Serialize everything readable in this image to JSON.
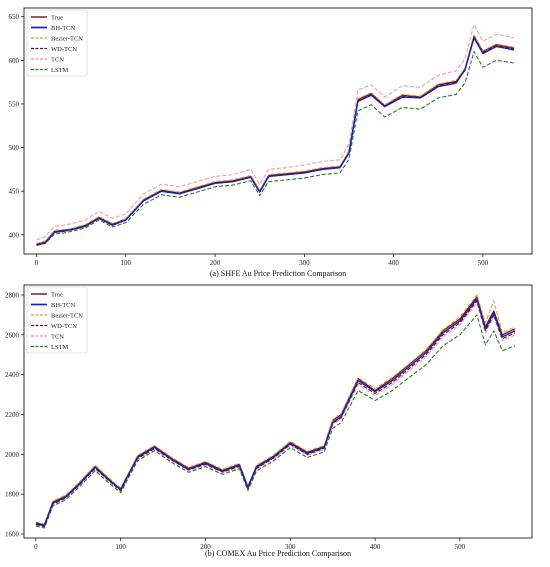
{
  "chart_data": [
    {
      "type": "line",
      "caption": "(a) SHFE Au Price Prediction Comparison",
      "xlim": [
        -14,
        555
      ],
      "ylim": [
        378,
        660
      ],
      "x_ticks": [
        0,
        100,
        200,
        300,
        400,
        500
      ],
      "y_ticks": [
        400,
        450,
        500,
        550,
        600,
        650
      ],
      "legend_position": "upper-left",
      "grid": false,
      "x": [
        0,
        10,
        20,
        30,
        40,
        55,
        70,
        85,
        100,
        120,
        140,
        160,
        180,
        200,
        220,
        240,
        250,
        260,
        280,
        300,
        320,
        340,
        350,
        360,
        375,
        390,
        410,
        430,
        450,
        470,
        480,
        490,
        500,
        515,
        535
      ],
      "series": [
        {
          "name": "True",
          "color": "#7a1020",
          "dash": "solid",
          "width": 1.2,
          "values": [
            389,
            392,
            404,
            405,
            407,
            411,
            420,
            412,
            418,
            440,
            451,
            448,
            454,
            460,
            462,
            467,
            450,
            468,
            470,
            472,
            476,
            478,
            495,
            555,
            562,
            548,
            560,
            558,
            572,
            576,
            590,
            628,
            610,
            618,
            614
          ]
        },
        {
          "name": "BH-TCN",
          "color": "#1f1fb4",
          "dash": "solid",
          "width": 1.5,
          "values": [
            388,
            391,
            403,
            404,
            406,
            410,
            419,
            411,
            417,
            439,
            450,
            447,
            453,
            459,
            461,
            466,
            449,
            467,
            469,
            471,
            475,
            477,
            494,
            553,
            560,
            547,
            558,
            557,
            570,
            574,
            589,
            626,
            608,
            616,
            612
          ]
        },
        {
          "name": "Bezier-TCN",
          "color": "#e0a020",
          "dash": "4 2",
          "width": 1.1,
          "values": [
            390,
            393,
            405,
            406,
            407,
            412,
            421,
            413,
            418,
            441,
            452,
            449,
            455,
            461,
            463,
            468,
            451,
            469,
            471,
            473,
            477,
            479,
            496,
            556,
            563,
            549,
            561,
            559,
            573,
            577,
            591,
            629,
            611,
            619,
            615
          ]
        },
        {
          "name": "WD-TCN",
          "color": "#5a1a10",
          "dash": "4 2",
          "width": 1.1,
          "values": [
            389,
            391,
            403,
            405,
            406,
            410,
            419,
            412,
            417,
            439,
            450,
            447,
            453,
            459,
            461,
            466,
            449,
            467,
            469,
            471,
            475,
            477,
            494,
            554,
            561,
            547,
            559,
            557,
            571,
            575,
            589,
            627,
            609,
            617,
            613
          ]
        },
        {
          "name": "TCN",
          "color": "#f2a0b8",
          "dash": "4 2",
          "width": 1.2,
          "values": [
            394,
            398,
            410,
            411,
            413,
            417,
            427,
            419,
            424,
            447,
            458,
            455,
            461,
            467,
            469,
            475,
            458,
            475,
            477,
            480,
            484,
            486,
            504,
            566,
            572,
            558,
            571,
            569,
            583,
            588,
            602,
            641,
            622,
            630,
            626
          ]
        },
        {
          "name": "LSTM",
          "color": "#2a7a2a",
          "dash": "4 2",
          "width": 1.1,
          "values": [
            388,
            390,
            401,
            402,
            404,
            408,
            417,
            409,
            414,
            435,
            446,
            443,
            449,
            455,
            457,
            462,
            445,
            461,
            463,
            465,
            469,
            471,
            487,
            542,
            549,
            535,
            546,
            544,
            557,
            561,
            574,
            610,
            592,
            600,
            597
          ]
        }
      ]
    },
    {
      "type": "line",
      "caption": "(b) COMEX Au Price Prediction Comparison",
      "xlim": [
        -14,
        585
      ],
      "ylim": [
        1580,
        2850
      ],
      "x_ticks": [
        0,
        100,
        200,
        300,
        400,
        500
      ],
      "y_ticks": [
        1600,
        1800,
        2000,
        2200,
        2400,
        2600,
        2800
      ],
      "legend_position": "upper-left",
      "grid": false,
      "x": [
        0,
        10,
        20,
        35,
        50,
        70,
        85,
        100,
        120,
        140,
        160,
        180,
        200,
        220,
        240,
        250,
        260,
        280,
        300,
        320,
        340,
        350,
        360,
        380,
        400,
        420,
        440,
        460,
        480,
        500,
        520,
        530,
        540,
        550,
        565
      ],
      "series": [
        {
          "name": "True",
          "color": "#7a1020",
          "dash": "solid",
          "width": 1.2,
          "values": [
            1650,
            1640,
            1760,
            1790,
            1850,
            1940,
            1880,
            1820,
            1990,
            2040,
            1980,
            1930,
            1960,
            1920,
            1950,
            1830,
            1940,
            1990,
            2060,
            2010,
            2040,
            2170,
            2200,
            2380,
            2320,
            2380,
            2450,
            2520,
            2620,
            2680,
            2790,
            2640,
            2720,
            2600,
            2630
          ]
        },
        {
          "name": "BH-TCN",
          "color": "#1f1fb4",
          "dash": "solid",
          "width": 1.5,
          "values": [
            1655,
            1645,
            1755,
            1785,
            1845,
            1935,
            1875,
            1825,
            1985,
            2035,
            1975,
            1925,
            1955,
            1915,
            1945,
            1835,
            1935,
            1985,
            2055,
            2005,
            2035,
            2160,
            2190,
            2370,
            2315,
            2370,
            2440,
            2510,
            2610,
            2670,
            2780,
            2630,
            2710,
            2590,
            2620
          ]
        },
        {
          "name": "Bezier-TCN",
          "color": "#e0a020",
          "dash": "4 2",
          "width": 1.1,
          "values": [
            1660,
            1650,
            1765,
            1795,
            1855,
            1945,
            1885,
            1830,
            1995,
            2045,
            1985,
            1935,
            1965,
            1925,
            1955,
            1840,
            1945,
            1995,
            2065,
            2015,
            2045,
            2175,
            2205,
            2385,
            2330,
            2385,
            2455,
            2525,
            2625,
            2690,
            2800,
            2660,
            2770,
            2610,
            2640
          ]
        },
        {
          "name": "WD-TCN",
          "color": "#5a1a10",
          "dash": "4 2",
          "width": 1.1,
          "values": [
            1648,
            1638,
            1750,
            1782,
            1842,
            1930,
            1872,
            1818,
            1980,
            2030,
            1972,
            1922,
            1950,
            1912,
            1940,
            1828,
            1930,
            1980,
            2050,
            2000,
            2030,
            2155,
            2185,
            2360,
            2305,
            2360,
            2430,
            2500,
            2600,
            2660,
            2770,
            2620,
            2700,
            2580,
            2610
          ]
        },
        {
          "name": "TCN",
          "color": "#f2a0b8",
          "dash": "4 2",
          "width": 1.2,
          "values": [
            1645,
            1635,
            1745,
            1778,
            1838,
            1925,
            1868,
            1815,
            1975,
            2025,
            1968,
            1918,
            1945,
            1908,
            1935,
            1825,
            1925,
            1975,
            2045,
            1995,
            2025,
            2150,
            2180,
            2350,
            2295,
            2350,
            2420,
            2490,
            2590,
            2650,
            2760,
            2610,
            2690,
            2570,
            2600
          ]
        },
        {
          "name": "LSTM",
          "color": "#2a7a2a",
          "dash": "4 2",
          "width": 1.1,
          "values": [
            1640,
            1630,
            1740,
            1772,
            1832,
            1918,
            1860,
            1808,
            1968,
            2018,
            1960,
            1910,
            1938,
            1900,
            1928,
            1818,
            1916,
            1966,
            2034,
            1984,
            2012,
            2130,
            2160,
            2320,
            2270,
            2320,
            2385,
            2450,
            2545,
            2600,
            2700,
            2550,
            2620,
            2520,
            2545
          ]
        }
      ]
    }
  ]
}
